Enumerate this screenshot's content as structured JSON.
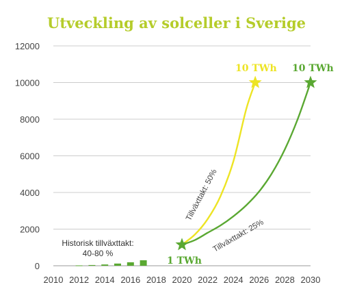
{
  "chart_data": {
    "type": "line",
    "title": "Utveckling av solceller i Sverige",
    "xlabel": "",
    "ylabel": "",
    "xlim": [
      2010,
      2030
    ],
    "ylim": [
      0,
      12000
    ],
    "x_ticks": [
      2010,
      2012,
      2014,
      2016,
      2018,
      2020,
      2022,
      2024,
      2026,
      2028,
      2030
    ],
    "y_ticks": [
      0,
      2000,
      4000,
      6000,
      8000,
      10000,
      12000
    ],
    "grid": "horizontal",
    "historical_bars": {
      "x": [
        2012,
        2013,
        2014,
        2015,
        2016,
        2017
      ],
      "values": [
        20,
        40,
        70,
        120,
        190,
        300
      ]
    },
    "series": [
      {
        "label": "Tillväxttakt: 50%",
        "color": "#ede424",
        "x": [
          2020,
          2021,
          2022,
          2023,
          2024,
          2025,
          2025.7
        ],
        "values": [
          1150,
          1700,
          2550,
          3800,
          5700,
          8550,
          10000
        ]
      },
      {
        "label": "Tillväxttakt: 25%",
        "color": "#5aa832",
        "x": [
          2020,
          2021,
          2022,
          2023,
          2024,
          2025,
          2026,
          2027,
          2028,
          2029,
          2030
        ],
        "values": [
          1150,
          1400,
          1800,
          2200,
          2700,
          3300,
          4050,
          5050,
          6350,
          8000,
          10000
        ]
      }
    ],
    "annotations": [
      {
        "text_lines": [
          "Historisk tillväxttakt:",
          "40-80 %"
        ]
      },
      {
        "text": "1 TWh",
        "color": "#5aa832"
      },
      {
        "text": "10 TWh",
        "color": "#ede424"
      },
      {
        "text": "10 TWh",
        "color": "#5aa832"
      }
    ],
    "colors": {
      "title": "#b5cc2a",
      "bars": "#5aa832",
      "grid": "#cccccc",
      "star_green": "#5aa832",
      "star_yellow": "#ede424"
    }
  }
}
